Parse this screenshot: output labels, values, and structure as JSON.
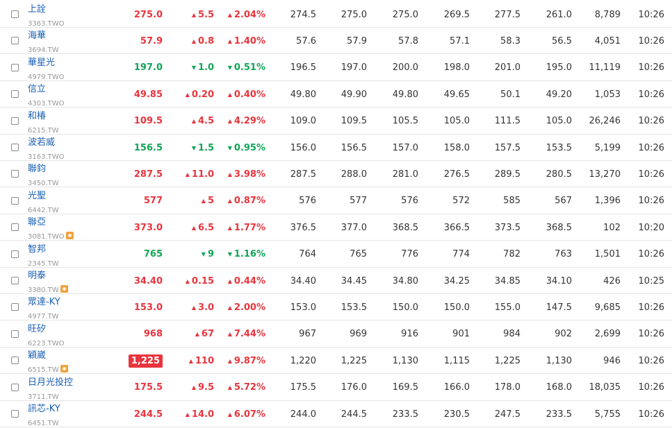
{
  "colors": {
    "up": "#e9343d",
    "down": "#10a556",
    "link": "#1a5fb4",
    "limit_up_box": "#e9343d"
  },
  "icons": {
    "up": "triangle-up-icon",
    "down": "triangle-down-icon",
    "flag": "badge-icon"
  },
  "rows": [
    {
      "name": "上詮",
      "code": "3363.TWO",
      "flag": false,
      "dir": "up",
      "price": "275.0",
      "change": "5.5",
      "pct": "2.04%",
      "c1": "274.5",
      "c2": "275.0",
      "c3": "275.0",
      "c4": "269.5",
      "c5": "277.5",
      "c6": "261.0",
      "volume": "8,789",
      "time": "10:26"
    },
    {
      "name": "海華",
      "code": "3694.TW",
      "flag": false,
      "dir": "up",
      "price": "57.9",
      "change": "0.8",
      "pct": "1.40%",
      "c1": "57.6",
      "c2": "57.9",
      "c3": "57.8",
      "c4": "57.1",
      "c5": "58.3",
      "c6": "56.5",
      "volume": "4,051",
      "time": "10:26"
    },
    {
      "name": "華星光",
      "code": "4979.TWO",
      "flag": false,
      "dir": "down",
      "price": "197.0",
      "change": "1.0",
      "pct": "0.51%",
      "c1": "196.5",
      "c2": "197.0",
      "c3": "200.0",
      "c4": "198.0",
      "c5": "201.0",
      "c6": "195.0",
      "volume": "11,119",
      "time": "10:26"
    },
    {
      "name": "信立",
      "code": "4303.TWO",
      "flag": false,
      "dir": "up",
      "price": "49.85",
      "change": "0.20",
      "pct": "0.40%",
      "c1": "49.80",
      "c2": "49.90",
      "c3": "49.80",
      "c4": "49.65",
      "c5": "50.1",
      "c6": "49.20",
      "volume": "1,053",
      "time": "10:26"
    },
    {
      "name": "和椿",
      "code": "6215.TW",
      "flag": false,
      "dir": "up",
      "price": "109.5",
      "change": "4.5",
      "pct": "4.29%",
      "c1": "109.0",
      "c2": "109.5",
      "c3": "105.5",
      "c4": "105.0",
      "c5": "111.5",
      "c6": "105.0",
      "volume": "26,246",
      "time": "10:26"
    },
    {
      "name": "波若威",
      "code": "3163.TWO",
      "flag": false,
      "dir": "down",
      "price": "156.5",
      "change": "1.5",
      "pct": "0.95%",
      "c1": "156.0",
      "c2": "156.5",
      "c3": "157.0",
      "c4": "158.0",
      "c5": "157.5",
      "c6": "153.5",
      "volume": "5,199",
      "time": "10:26"
    },
    {
      "name": "聯鈞",
      "code": "3450.TW",
      "flag": false,
      "dir": "up",
      "price": "287.5",
      "change": "11.0",
      "pct": "3.98%",
      "c1": "287.5",
      "c2": "288.0",
      "c3": "281.0",
      "c4": "276.5",
      "c5": "289.5",
      "c6": "280.5",
      "volume": "13,270",
      "time": "10:26"
    },
    {
      "name": "光聖",
      "code": "6442.TW",
      "flag": false,
      "dir": "up",
      "price": "577",
      "change": "5",
      "pct": "0.87%",
      "c1": "576",
      "c2": "577",
      "c3": "576",
      "c4": "572",
      "c5": "585",
      "c6": "567",
      "volume": "1,396",
      "time": "10:26"
    },
    {
      "name": "聯亞",
      "code": "3081.TWO",
      "flag": true,
      "dir": "up",
      "price": "373.0",
      "change": "6.5",
      "pct": "1.77%",
      "c1": "376.5",
      "c2": "377.0",
      "c3": "368.5",
      "c4": "366.5",
      "c5": "373.5",
      "c6": "368.5",
      "volume": "102",
      "time": "10:20"
    },
    {
      "name": "智邦",
      "code": "2345.TW",
      "flag": false,
      "dir": "down",
      "price": "765",
      "change": "9",
      "pct": "1.16%",
      "c1": "764",
      "c2": "765",
      "c3": "776",
      "c4": "774",
      "c5": "782",
      "c6": "763",
      "volume": "1,501",
      "time": "10:26"
    },
    {
      "name": "明泰",
      "code": "3380.TW",
      "flag": true,
      "dir": "up",
      "price": "34.40",
      "change": "0.15",
      "pct": "0.44%",
      "c1": "34.40",
      "c2": "34.45",
      "c3": "34.80",
      "c4": "34.25",
      "c5": "34.85",
      "c6": "34.10",
      "volume": "426",
      "time": "10:25"
    },
    {
      "name": "眾達-KY",
      "code": "4977.TW",
      "flag": false,
      "dir": "up",
      "price": "153.0",
      "change": "3.0",
      "pct": "2.00%",
      "c1": "153.0",
      "c2": "153.5",
      "c3": "150.0",
      "c4": "150.0",
      "c5": "155.0",
      "c6": "147.5",
      "volume": "9,685",
      "time": "10:26"
    },
    {
      "name": "旺矽",
      "code": "6223.TWO",
      "flag": false,
      "dir": "up",
      "price": "968",
      "change": "67",
      "pct": "7.44%",
      "c1": "967",
      "c2": "969",
      "c3": "916",
      "c4": "901",
      "c5": "984",
      "c6": "902",
      "volume": "2,699",
      "time": "10:26"
    },
    {
      "name": "穎崴",
      "code": "6515.TW",
      "flag": true,
      "dir": "up",
      "limit": true,
      "price": "1,225",
      "change": "110",
      "pct": "9.87%",
      "c1": "1,220",
      "c2": "1,225",
      "c3": "1,130",
      "c4": "1,115",
      "c5": "1,225",
      "c6": "1,130",
      "volume": "946",
      "time": "10:26"
    },
    {
      "name": "日月光投控",
      "code": "3711.TW",
      "flag": false,
      "dir": "up",
      "price": "175.5",
      "change": "9.5",
      "pct": "5.72%",
      "c1": "175.5",
      "c2": "176.0",
      "c3": "169.5",
      "c4": "166.0",
      "c5": "178.0",
      "c6": "168.0",
      "volume": "18,035",
      "time": "10:26"
    },
    {
      "name": "訊芯-KY",
      "code": "6451.TW",
      "flag": false,
      "dir": "up",
      "price": "244.5",
      "change": "14.0",
      "pct": "6.07%",
      "c1": "244.0",
      "c2": "244.5",
      "c3": "233.5",
      "c4": "230.5",
      "c5": "247.5",
      "c6": "233.5",
      "volume": "5,755",
      "time": "10:26"
    }
  ]
}
